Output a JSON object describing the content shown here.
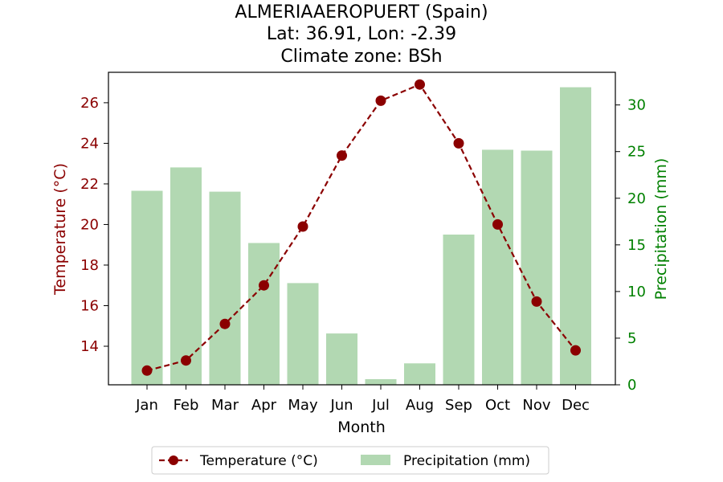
{
  "chart_data": {
    "type": "bar",
    "title_lines": [
      "ALMERIAAEROPUERT (Spain)",
      "Lat: 36.91, Lon: -2.39",
      "Climate zone: BSh"
    ],
    "categories": [
      "Jan",
      "Feb",
      "Mar",
      "Apr",
      "May",
      "Jun",
      "Jul",
      "Aug",
      "Sep",
      "Oct",
      "Nov",
      "Dec"
    ],
    "xlabel": "Month",
    "temperature": {
      "name": "Temperature (°C)",
      "type": "line",
      "axis": "left",
      "ylabel": "Temperature (°C)",
      "ylim": [
        12.1,
        27.5
      ],
      "yticks": [
        14,
        16,
        18,
        20,
        22,
        24,
        26
      ],
      "color": "#8b0000",
      "values": [
        12.8,
        13.3,
        15.1,
        17.0,
        19.9,
        23.4,
        26.1,
        26.9,
        24.0,
        20.0,
        16.2,
        13.8
      ]
    },
    "precipitation": {
      "name": "Precipitation (mm)",
      "type": "bar",
      "axis": "right",
      "ylabel": "Precipitation (mm)",
      "ylim": [
        0,
        33.5
      ],
      "yticks": [
        0,
        5,
        10,
        15,
        20,
        25,
        30
      ],
      "color": "#b2d8b2",
      "axis_color": "#008000",
      "values": [
        20.8,
        23.3,
        20.7,
        15.2,
        10.9,
        5.5,
        0.6,
        2.3,
        16.1,
        25.2,
        25.1,
        31.9
      ]
    },
    "legend": {
      "placement": "bottom-center",
      "entries": [
        "Temperature (°C)",
        "Precipitation (mm)"
      ]
    },
    "grid": false
  }
}
